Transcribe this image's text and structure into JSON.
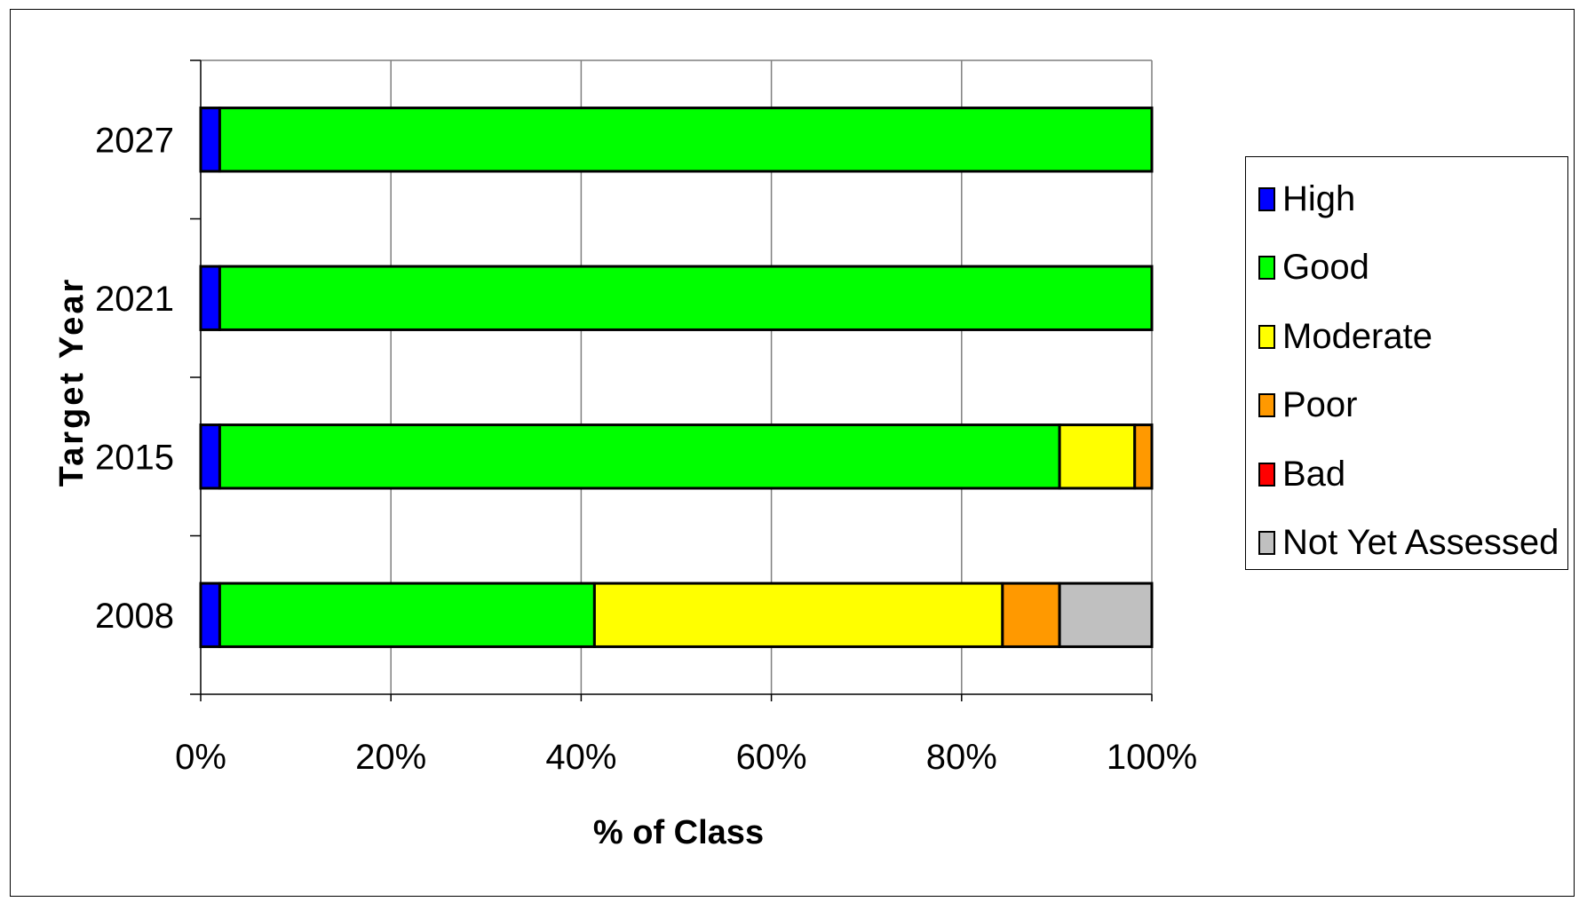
{
  "chart_data": {
    "type": "bar",
    "orientation": "horizontal",
    "stacked": "percent",
    "categories": [
      "2027",
      "2021",
      "2015",
      "2008"
    ],
    "series": [
      {
        "name": "High",
        "color": "#0000ff",
        "values": [
          2,
          2,
          2,
          2
        ]
      },
      {
        "name": "Good",
        "color": "#00ff00",
        "values": [
          98,
          98,
          88.3,
          39.4
        ]
      },
      {
        "name": "Moderate",
        "color": "#ffff00",
        "values": [
          0,
          0,
          7.9,
          42.9
        ]
      },
      {
        "name": "Poor",
        "color": "#ff9900",
        "values": [
          0,
          0,
          1.8,
          6
        ]
      },
      {
        "name": "Bad",
        "color": "#ff0000",
        "values": [
          0,
          0,
          0,
          0
        ]
      },
      {
        "name": "Not Yet Assessed",
        "color": "#c0c0c0",
        "values": [
          0,
          0,
          0,
          9.7
        ]
      }
    ],
    "xlabel": "% of Class",
    "ylabel": "Target Year",
    "xlim": [
      0,
      100
    ],
    "xticks": [
      "0%",
      "20%",
      "40%",
      "60%",
      "80%",
      "100%"
    ],
    "grid": "vertical",
    "legend_position": "right"
  }
}
